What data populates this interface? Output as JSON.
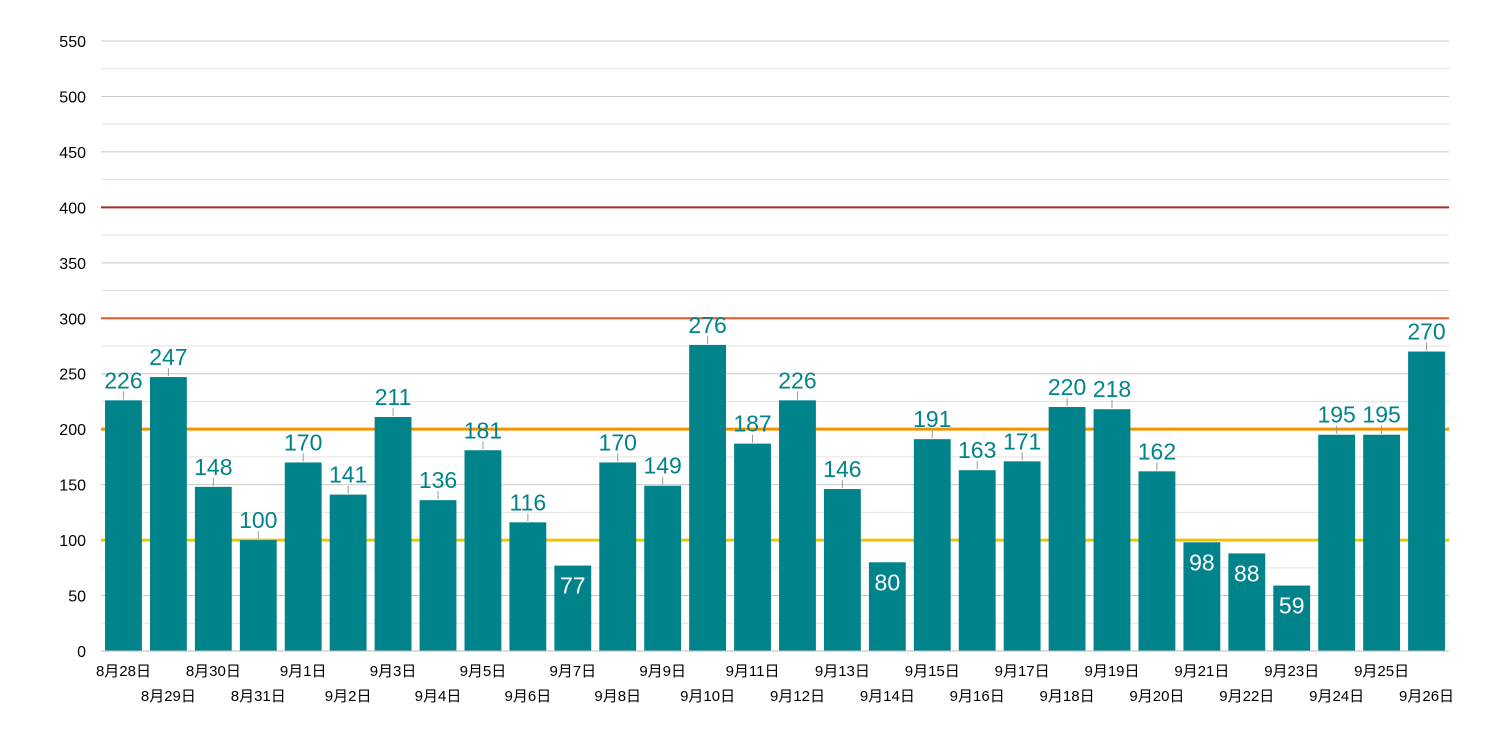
{
  "chart_data": {
    "type": "bar",
    "title": "",
    "xlabel": "",
    "ylabel": "",
    "ylim": [
      0,
      550
    ],
    "yticks": [
      0,
      50,
      100,
      150,
      200,
      250,
      300,
      350,
      400,
      450,
      500,
      550
    ],
    "grid": true,
    "legend": "none",
    "bar_color": "#00838A",
    "label_color_outside": "#00838A",
    "label_color_inside": "#ffffff",
    "categories": [
      "8月28日",
      "8月29日",
      "8月30日",
      "8月31日",
      "9月1日",
      "9月2日",
      "9月3日",
      "9月4日",
      "9月5日",
      "9月6日",
      "9月7日",
      "9月8日",
      "9月9日",
      "9月10日",
      "9月11日",
      "9月12日",
      "9月13日",
      "9月14日",
      "9月15日",
      "9月16日",
      "9月17日",
      "9月18日",
      "9月19日",
      "9月20日",
      "9月21日",
      "9月22日",
      "9月23日",
      "9月24日",
      "9月25日",
      "9月26日"
    ],
    "values": [
      226,
      247,
      148,
      100,
      170,
      141,
      211,
      136,
      181,
      116,
      77,
      170,
      149,
      276,
      187,
      226,
      146,
      80,
      191,
      163,
      171,
      220,
      218,
      162,
      98,
      88,
      59,
      195,
      195,
      270
    ],
    "data_labels": [
      "226",
      "247",
      "148",
      "100",
      "170",
      "141",
      "211",
      "136",
      "181",
      "116",
      "77",
      "170",
      "149",
      "276",
      "187",
      "226",
      "146",
      "80",
      "191",
      "163",
      "171",
      "220",
      "218",
      "162",
      "98",
      "88",
      "59",
      "195",
      "195",
      "270"
    ],
    "reference_lines": [
      {
        "value": 400,
        "color": "#A52A2A"
      },
      {
        "value": 300,
        "color": "#E8572A"
      },
      {
        "value": 200,
        "color": "#F39200"
      },
      {
        "value": 100,
        "color": "#F2C400"
      }
    ]
  }
}
